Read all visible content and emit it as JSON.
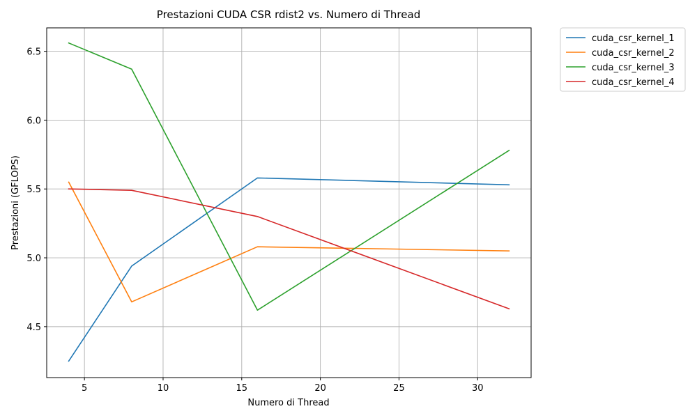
{
  "chart_data": {
    "type": "line",
    "title": "Prestazioni CUDA CSR rdist2 vs. Numero di Thread",
    "xlabel": "Numero di Thread",
    "ylabel": "Prestazioni (GFLOPS)",
    "x": [
      4,
      8,
      16,
      32
    ],
    "xlim": [
      2.6,
      33.4
    ],
    "ylim": [
      4.13,
      6.67
    ],
    "xticks": [
      5,
      10,
      15,
      20,
      25,
      30
    ],
    "yticks": [
      4.5,
      5.0,
      5.5,
      6.0,
      6.5
    ],
    "xtick_labels": [
      "5",
      "10",
      "15",
      "20",
      "25",
      "30"
    ],
    "ytick_labels": [
      "4.5",
      "5.0",
      "5.5",
      "6.0",
      "6.5"
    ],
    "grid": true,
    "legend_position": "outside top-right",
    "series": [
      {
        "name": "cuda_csr_kernel_1",
        "color": "#1f77b4",
        "values": [
          4.25,
          4.94,
          5.58,
          5.53
        ]
      },
      {
        "name": "cuda_csr_kernel_2",
        "color": "#ff7f0e",
        "values": [
          5.55,
          4.68,
          5.08,
          5.05
        ]
      },
      {
        "name": "cuda_csr_kernel_3",
        "color": "#2ca02c",
        "values": [
          6.56,
          6.37,
          4.62,
          5.78
        ]
      },
      {
        "name": "cuda_csr_kernel_4",
        "color": "#d62728",
        "values": [
          5.5,
          5.49,
          5.3,
          4.63
        ]
      }
    ]
  }
}
